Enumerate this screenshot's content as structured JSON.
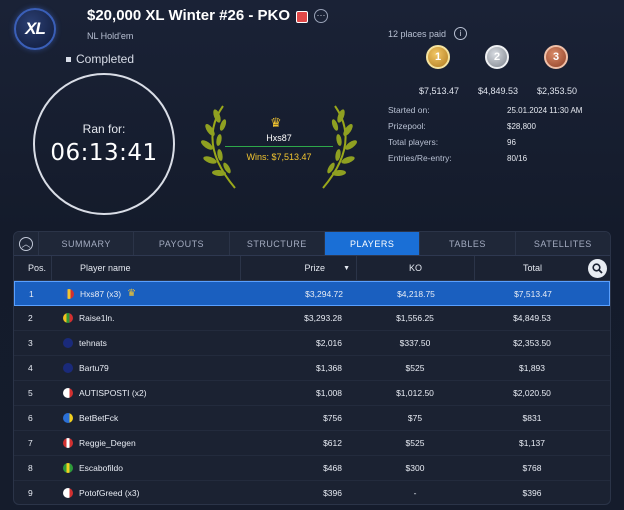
{
  "header": {
    "logo_text": "XL",
    "title": "$20,000 XL Winter #26 - PKO",
    "game_type": "NL Hold'em",
    "status": "Completed"
  },
  "timer": {
    "label": "Ran for:",
    "value": "06:13:41"
  },
  "winner": {
    "name": "Hxs87",
    "wins": "Wins: $7,513.47"
  },
  "payouts": {
    "places_paid": "12 places paid",
    "medals": [
      {
        "place": "1",
        "amount": "$7,513.47",
        "color": "#c8902a"
      },
      {
        "place": "2",
        "amount": "$4,849.53",
        "color": "#8f949c"
      },
      {
        "place": "3",
        "amount": "$2,353.50",
        "color": "#b0553a"
      }
    ]
  },
  "info": [
    {
      "label": "Started on:",
      "value": "25.01.2024   11:30 AM"
    },
    {
      "label": "Prizepool:",
      "value": "$28,800"
    },
    {
      "label": "Total players:",
      "value": "96"
    },
    {
      "label": "Entries/Re-entry:",
      "value": "80/16"
    }
  ],
  "tabs": [
    {
      "label": "SUMMARY",
      "active": false
    },
    {
      "label": "PAYOUTS",
      "active": false
    },
    {
      "label": "STRUCTURE",
      "active": false
    },
    {
      "label": "PLAYERS",
      "active": true
    },
    {
      "label": "TABLES",
      "active": false
    },
    {
      "label": "SATELLITES",
      "active": false
    }
  ],
  "table": {
    "headers": {
      "pos": "Pos.",
      "name": "Player name",
      "prize": "Prize",
      "ko": "KO",
      "total": "Total"
    },
    "rows": [
      {
        "pos": "1",
        "name": "Hxs87 (x3)",
        "prize": "$3,294.72",
        "ko": "$4,218.75",
        "total": "$7,513.47",
        "flag": [
          "#2a5cc0",
          "#f2c530",
          "#d23030"
        ],
        "crown": true
      },
      {
        "pos": "2",
        "name": "Raise1ln.",
        "prize": "$3,293.28",
        "ko": "$1,556.25",
        "total": "$4,849.53",
        "flag": [
          "#f0c020",
          "#2e9a3a",
          "#d23030"
        ]
      },
      {
        "pos": "3",
        "name": "tehnats",
        "prize": "$2,016",
        "ko": "$337.50",
        "total": "$2,353.50",
        "flag": [
          "#1a2a7a",
          "#1a2a7a",
          "#1a2a7a"
        ]
      },
      {
        "pos": "4",
        "name": "Bartu79",
        "prize": "$1,368",
        "ko": "$525",
        "total": "$1,893",
        "flag": [
          "#1a2a7a",
          "#1a2a7a",
          "#1a2a7a"
        ]
      },
      {
        "pos": "5",
        "name": "AUTISPOSTI (x2)",
        "prize": "$1,008",
        "ko": "$1,012.50",
        "total": "$2,020.50",
        "flag": [
          "#ffffff",
          "#ffffff",
          "#d23030"
        ]
      },
      {
        "pos": "6",
        "name": "BetBetFck",
        "prize": "$756",
        "ko": "$75",
        "total": "$831",
        "flag": [
          "#2a6fd6",
          "#2a6fd6",
          "#f2d020"
        ]
      },
      {
        "pos": "7",
        "name": "Reggie_Degen",
        "prize": "$612",
        "ko": "$525",
        "total": "$1,137",
        "flag": [
          "#d23030",
          "#ffffff",
          "#d23030"
        ]
      },
      {
        "pos": "8",
        "name": "Escabofildo",
        "prize": "$468",
        "ko": "$300",
        "total": "$768",
        "flag": [
          "#2e9a3a",
          "#f2d020",
          "#2e9a3a"
        ]
      },
      {
        "pos": "9",
        "name": "PotofGreed (x3)",
        "prize": "$396",
        "ko": "-",
        "total": "$396",
        "flag": [
          "#ffffff",
          "#ffffff",
          "#d23030"
        ]
      }
    ]
  }
}
